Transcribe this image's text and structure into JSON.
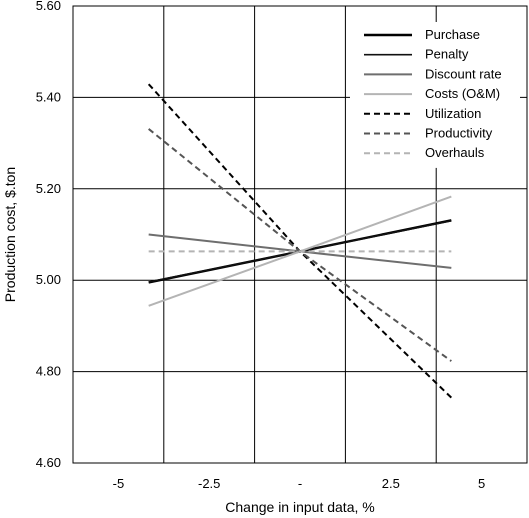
{
  "chart_data": {
    "type": "line",
    "title": "",
    "xlabel": "Change in input data, %",
    "ylabel": "Production cost, $.ton",
    "x_categories": [
      "-5",
      "-2.5",
      "-",
      "2.5",
      "5"
    ],
    "y_ticks": [
      "5.60",
      "5.40",
      "5.20",
      "5.00",
      "4.80",
      "4.60"
    ],
    "xlim": [
      -7.5,
      7.5
    ],
    "ylim": [
      4.6,
      5.6
    ],
    "grid": true,
    "legend_position": "top-right",
    "series": [
      {
        "name": "Purchase",
        "x": [
          -5,
          0,
          5
        ],
        "y": [
          4.995,
          5.063,
          5.131
        ],
        "color": "#000000",
        "dash": "solid",
        "width": 2.4
      },
      {
        "name": "Penalty",
        "x": [
          -5,
          0,
          5
        ],
        "y": [
          4.996,
          5.063,
          5.13
        ],
        "color": "#111111",
        "dash": "solid",
        "width": 1.6
      },
      {
        "name": "Discount rate",
        "x": [
          -5,
          0,
          5
        ],
        "y": [
          5.1,
          5.063,
          5.027
        ],
        "color": "#6e6e6e",
        "dash": "solid",
        "width": 2
      },
      {
        "name": "Costs (O&M)",
        "x": [
          -5,
          0,
          5
        ],
        "y": [
          4.944,
          5.063,
          5.183
        ],
        "color": "#b4b4b4",
        "dash": "solid",
        "width": 2
      },
      {
        "name": "Utilization",
        "x": [
          -5,
          0,
          5
        ],
        "y": [
          5.429,
          5.063,
          4.743
        ],
        "color": "#000000",
        "dash": "dashed",
        "width": 2
      },
      {
        "name": "Productivity",
        "x": [
          -5,
          0,
          5
        ],
        "y": [
          5.331,
          5.063,
          4.823
        ],
        "color": "#555555",
        "dash": "dashed",
        "width": 2
      },
      {
        "name": "Overhauls",
        "x": [
          -5,
          0,
          5
        ],
        "y": [
          5.063,
          5.063,
          5.063
        ],
        "color": "#b4b4b4",
        "dash": "dashed",
        "width": 2
      }
    ]
  }
}
